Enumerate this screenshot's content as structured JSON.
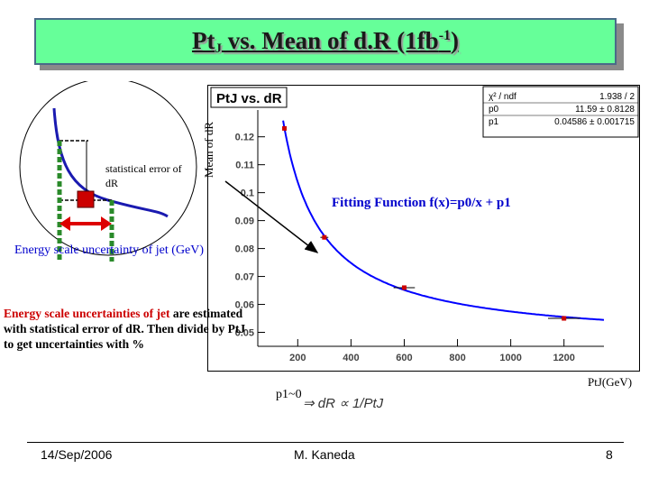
{
  "slide": {
    "title_pt": "Pt",
    "title_sub": "J",
    "title_mid": " vs. Mean of d.R (1fb",
    "title_sup": "-1",
    "title_end": ")"
  },
  "sketch": {
    "stat_error_label": "statistical error of dR",
    "ylabel": "Mean of dR"
  },
  "annotations": {
    "fit_function": "Fitting Function f(x)=p0/x + p1",
    "energy_scale": "Energy scale uncertainty of jet (GeV)",
    "paragraph_red": "Energy scale uncertainties of jet",
    "paragraph_rest": " are estimated with statistical error of dR. Then divide by PtJ to get uncertainties with %",
    "ptj_gev": "PtJ(GeV)",
    "p1_approx": "p1~0",
    "proportional": "⇒ dR ∝ 1/PtJ"
  },
  "footer": {
    "date": "14/Sep/2006",
    "author": "M. Kaneda",
    "page": "8"
  },
  "chart_data": {
    "type": "scatter",
    "title": "PtJ vs. dR",
    "xlim": [
      50,
      1350
    ],
    "ylim": [
      0.045,
      0.127
    ],
    "x_ticks": [
      200,
      400,
      600,
      800,
      1000,
      1200
    ],
    "y_ticks": [
      0.05,
      0.06,
      0.07,
      0.08,
      0.09,
      0.1,
      0.11,
      0.12
    ],
    "y_tick_labels": [
      "0.05",
      "0.06",
      "0.07",
      "0.08",
      "0.09",
      "0.1",
      "0.11",
      "0.12"
    ],
    "points": [
      {
        "x": 150,
        "y": 0.123,
        "xerr": 0
      },
      {
        "x": 300,
        "y": 0.084,
        "xerr": 15
      },
      {
        "x": 600,
        "y": 0.066,
        "xerr": 40
      },
      {
        "x": 1200,
        "y": 0.055,
        "xerr": 60
      }
    ],
    "fit": {
      "function": "p0/x + p1",
      "p0": 11.59,
      "p1": 0.04586
    },
    "stats_box": [
      {
        "label": "χ² / ndf",
        "value": "1.938 / 2"
      },
      {
        "label": "p0",
        "value": "11.59 ± 0.8128"
      },
      {
        "label": "p1",
        "value": "0.04586 ± 0.001715"
      }
    ],
    "colors": {
      "fit": "#0000ff",
      "points": "#cc0000"
    }
  }
}
